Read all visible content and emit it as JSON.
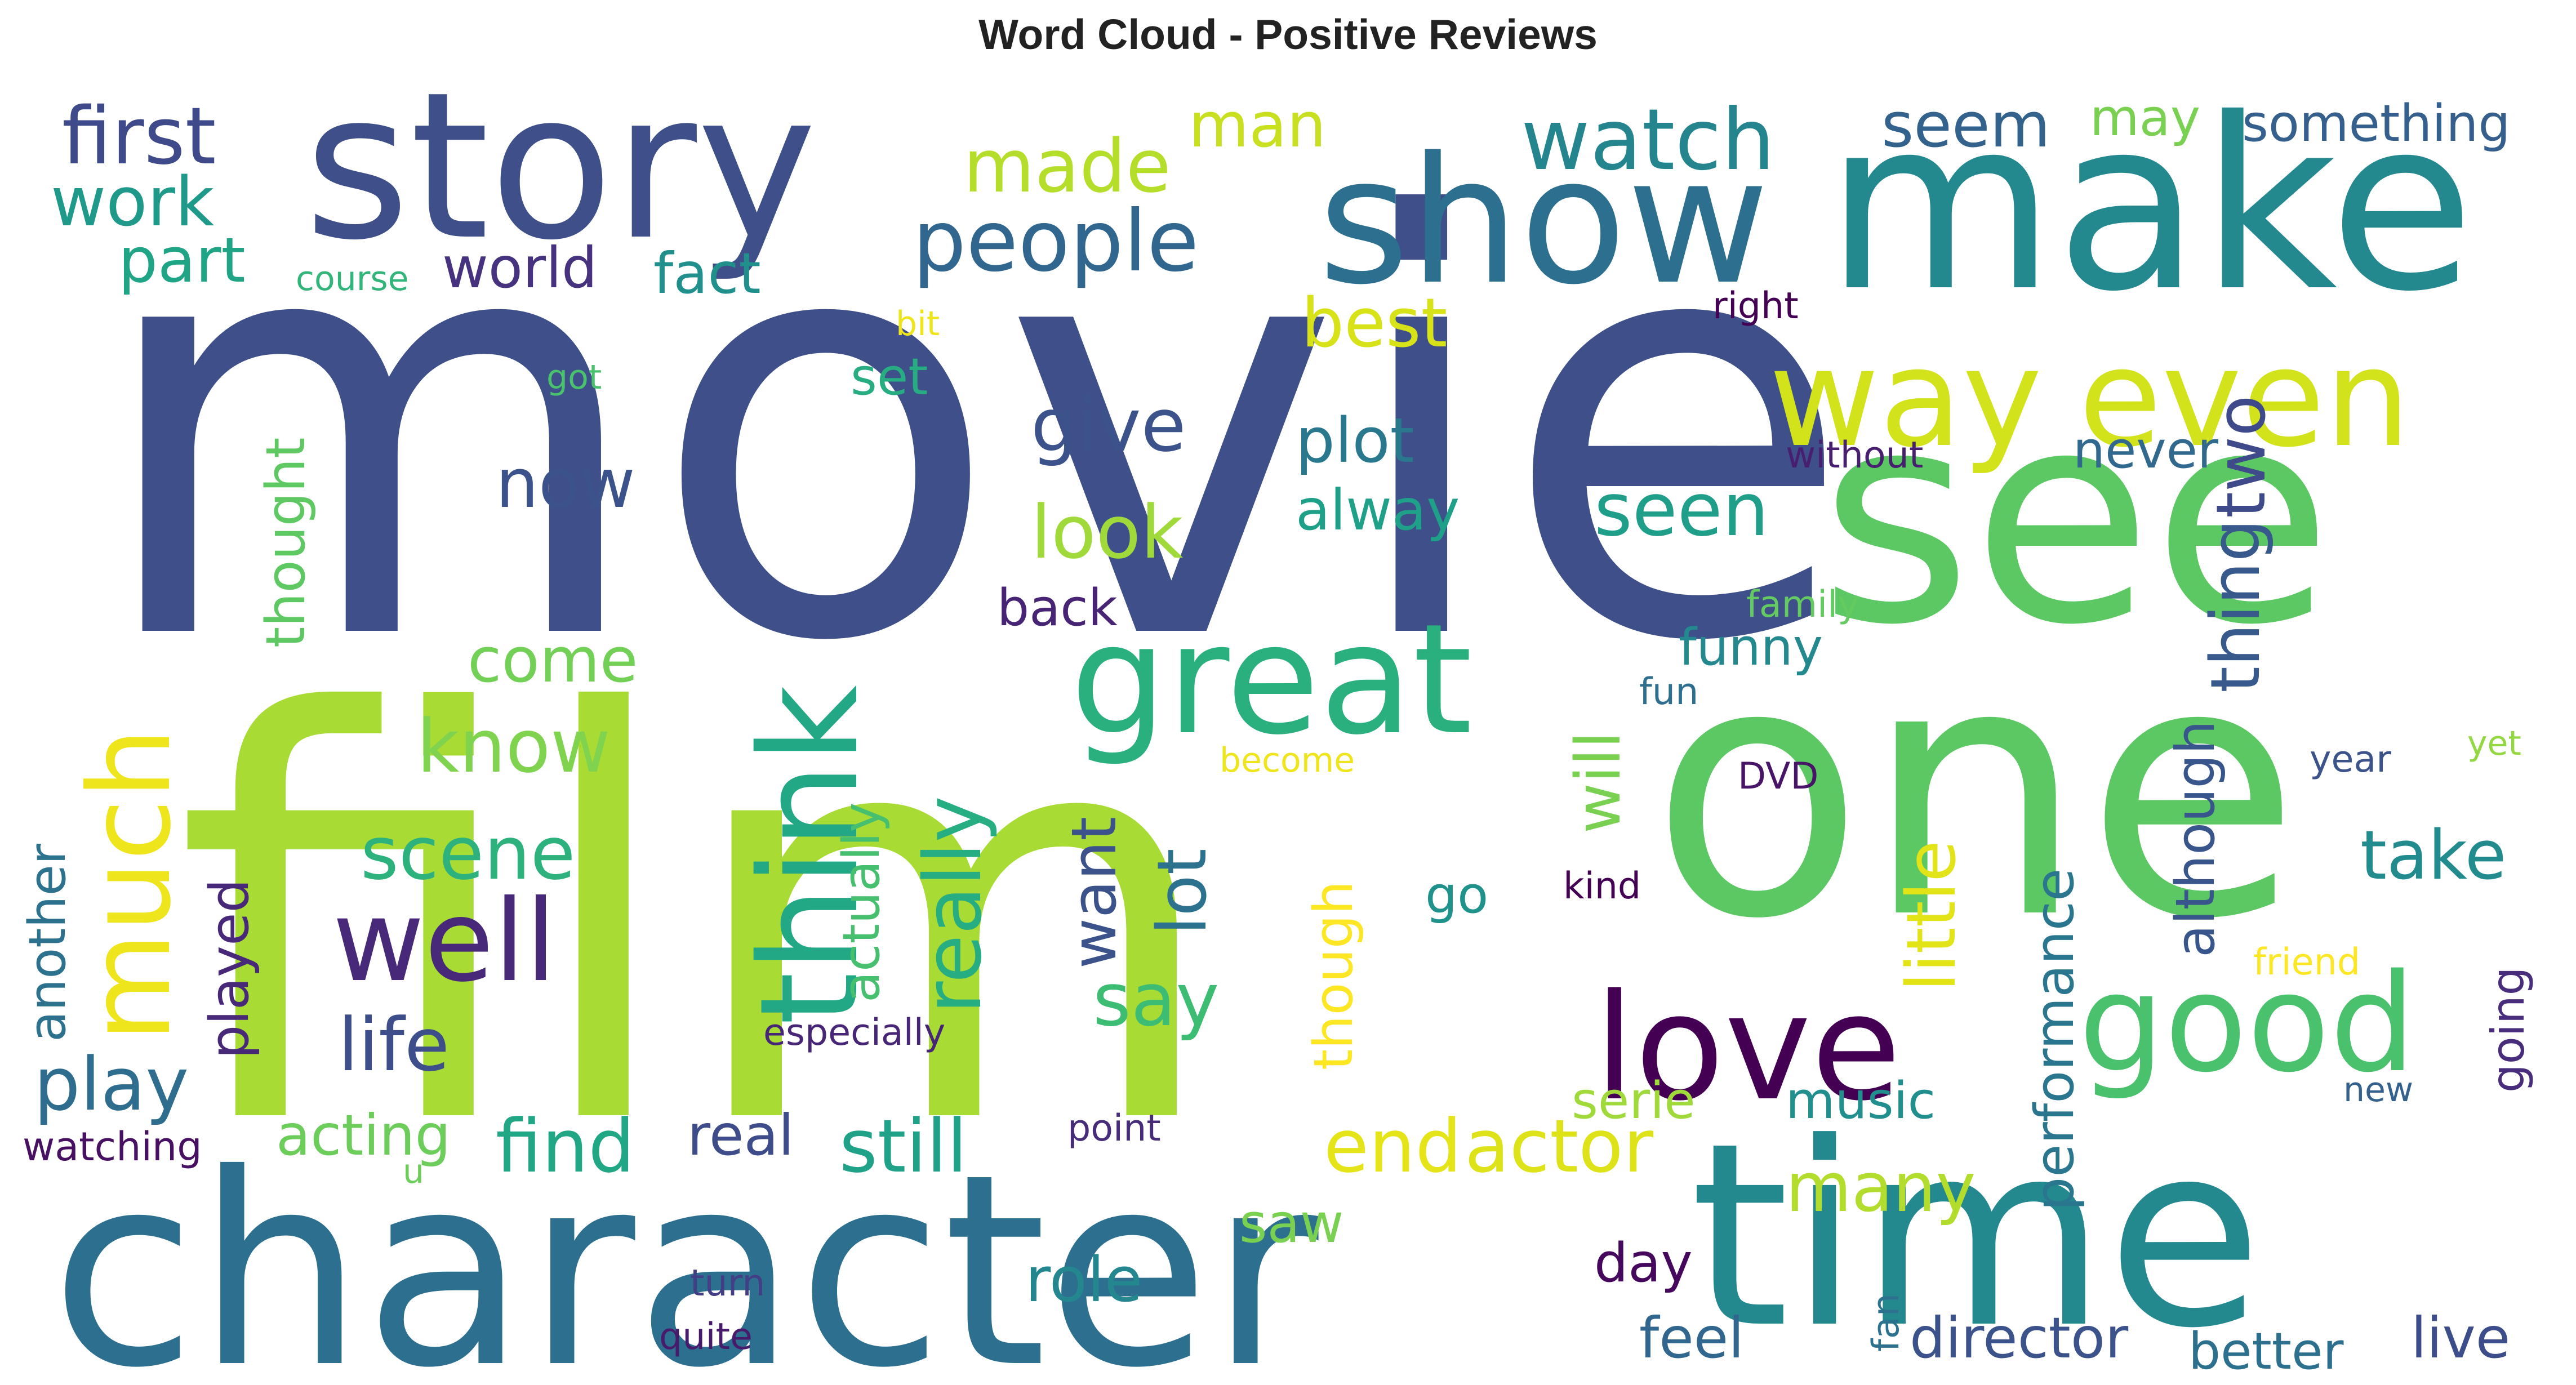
{
  "title": "Word Cloud - Positive Reviews",
  "words": [
    {
      "text": "movie",
      "color": "#3e4f8a"
    },
    {
      "text": "film",
      "color": "#a8db34"
    },
    {
      "text": "one",
      "color": "#5cc863"
    },
    {
      "text": "see",
      "color": "#5cc863"
    },
    {
      "text": "character",
      "color": "#2d6f8e"
    },
    {
      "text": "time",
      "color": "#23898e"
    },
    {
      "text": "make",
      "color": "#23898e"
    },
    {
      "text": "story",
      "color": "#3e4f8a"
    },
    {
      "text": "show",
      "color": "#2d6f8e"
    },
    {
      "text": "way",
      "color": "#d2e21b"
    },
    {
      "text": "even",
      "color": "#d2e21b"
    },
    {
      "text": "great",
      "color": "#2ab07f"
    },
    {
      "text": "think",
      "color": "#22a884"
    },
    {
      "text": "much",
      "color": "#efe51c"
    },
    {
      "text": "well",
      "color": "#482878"
    },
    {
      "text": "love",
      "color": "#440154"
    },
    {
      "text": "good",
      "color": "#4ac16d"
    },
    {
      "text": "watch",
      "color": "#25858e"
    },
    {
      "text": "people",
      "color": "#31668e"
    },
    {
      "text": "made",
      "color": "#b5de2b"
    },
    {
      "text": "man",
      "color": "#c8e020"
    },
    {
      "text": "first",
      "color": "#3e4a89"
    },
    {
      "text": "work",
      "color": "#1f9a8a"
    },
    {
      "text": "part",
      "color": "#20a486"
    },
    {
      "text": "course",
      "color": "#31b57b"
    },
    {
      "text": "world",
      "color": "#46327e"
    },
    {
      "text": "fact",
      "color": "#21908d"
    },
    {
      "text": "seem",
      "color": "#33638d"
    },
    {
      "text": "may",
      "color": "#7ad151"
    },
    {
      "text": "something",
      "color": "#355f8d"
    },
    {
      "text": "right",
      "color": "#440154"
    },
    {
      "text": "bit",
      "color": "#efe51c"
    },
    {
      "text": "best",
      "color": "#d8e219"
    },
    {
      "text": "got",
      "color": "#4ac16d"
    },
    {
      "text": "set",
      "color": "#27ad81"
    },
    {
      "text": "give",
      "color": "#3b528b"
    },
    {
      "text": "plot",
      "color": "#2a788e"
    },
    {
      "text": "two",
      "color": "#3e4a89"
    },
    {
      "text": "now",
      "color": "#3b528b"
    },
    {
      "text": "thought",
      "color": "#5ec962"
    },
    {
      "text": "look",
      "color": "#9fda3a"
    },
    {
      "text": "alway",
      "color": "#1fa088"
    },
    {
      "text": "seen",
      "color": "#1f9e89"
    },
    {
      "text": "without",
      "color": "#481f70"
    },
    {
      "text": "never",
      "color": "#31688e"
    },
    {
      "text": "thing",
      "color": "#38598c"
    },
    {
      "text": "back",
      "color": "#482475"
    },
    {
      "text": "family",
      "color": "#63cb5f"
    },
    {
      "text": "funny",
      "color": "#23898e"
    },
    {
      "text": "come",
      "color": "#73d056"
    },
    {
      "text": "fun",
      "color": "#2e6e8e"
    },
    {
      "text": "know",
      "color": "#7fd34e"
    },
    {
      "text": "really",
      "color": "#26ad81"
    },
    {
      "text": "little",
      "color": "#e2e418"
    },
    {
      "text": "although",
      "color": "#39568c"
    },
    {
      "text": "yet",
      "color": "#93d741"
    },
    {
      "text": "become",
      "color": "#efe51c"
    },
    {
      "text": "year",
      "color": "#3b528b"
    },
    {
      "text": "DVD",
      "color": "#481467"
    },
    {
      "text": "will",
      "color": "#7ad151"
    },
    {
      "text": "scene",
      "color": "#2db27d"
    },
    {
      "text": "take",
      "color": "#228b8d"
    },
    {
      "text": "actually",
      "color": "#46c06f"
    },
    {
      "text": "want",
      "color": "#3b528b"
    },
    {
      "text": "lot",
      "color": "#2c728e"
    },
    {
      "text": "another",
      "color": "#2c728e"
    },
    {
      "text": "played",
      "color": "#482878"
    },
    {
      "text": "performance",
      "color": "#2a768e"
    },
    {
      "text": "kind",
      "color": "#440154"
    },
    {
      "text": "go",
      "color": "#20928c"
    },
    {
      "text": "going",
      "color": "#472d7b"
    },
    {
      "text": "friend",
      "color": "#fde725"
    },
    {
      "text": "though",
      "color": "#fde725"
    },
    {
      "text": "especially",
      "color": "#482677"
    },
    {
      "text": "say",
      "color": "#3dbc74"
    },
    {
      "text": "life",
      "color": "#3d4e8a"
    },
    {
      "text": "play",
      "color": "#2e6d8e"
    },
    {
      "text": "serie",
      "color": "#9fda3a"
    },
    {
      "text": "music",
      "color": "#218f8d"
    },
    {
      "text": "new",
      "color": "#34618d"
    },
    {
      "text": "watching",
      "color": "#471063"
    },
    {
      "text": "acting",
      "color": "#6ccd5a"
    },
    {
      "text": "u",
      "color": "#6ccd5a"
    },
    {
      "text": "find",
      "color": "#22a785"
    },
    {
      "text": "real",
      "color": "#3e4c8a"
    },
    {
      "text": "still",
      "color": "#1fa287"
    },
    {
      "text": "point",
      "color": "#472c7a"
    },
    {
      "text": "end",
      "color": "#e5e419"
    },
    {
      "text": "actor",
      "color": "#dde318"
    },
    {
      "text": "many",
      "color": "#b2dd2d"
    },
    {
      "text": "saw",
      "color": "#7ad151"
    },
    {
      "text": "role",
      "color": "#24868e"
    },
    {
      "text": "day",
      "color": "#46085c"
    },
    {
      "text": "turn",
      "color": "#433e85"
    },
    {
      "text": "quite",
      "color": "#481a6c"
    },
    {
      "text": "feel",
      "color": "#31668e"
    },
    {
      "text": "fan",
      "color": "#2c728e"
    },
    {
      "text": "director",
      "color": "#3b528b"
    },
    {
      "text": "better",
      "color": "#2d708e"
    },
    {
      "text": "live",
      "color": "#3d4d8a"
    }
  ]
}
